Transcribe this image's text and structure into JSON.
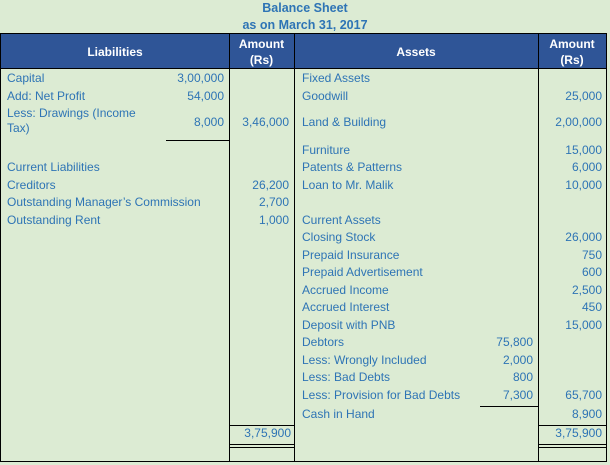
{
  "title": "Balance Sheet",
  "subtitle": "as on March 31, 2017",
  "header": {
    "liabilities": "Liabilities",
    "amount_left": "Amount (Rs)",
    "assets": "Assets",
    "amount_right": "Amount (Rs)"
  },
  "liabilities": [
    {
      "label": "Capital",
      "sub": "3,00,000",
      "amount": ""
    },
    {
      "label": "Add: Net Profit",
      "sub": "54,000",
      "amount": ""
    },
    {
      "label": "Less: Drawings (Income",
      "label2": "Tax)",
      "sub": "8,000",
      "amount": "3,46,000"
    },
    {
      "label": "Current Liabilities",
      "sub": "",
      "amount": ""
    },
    {
      "label": "Creditors",
      "sub": "",
      "amount": "26,200"
    },
    {
      "label": "Outstanding Manager’s Commission",
      "sub": "",
      "amount": "2,700"
    },
    {
      "label": "Outstanding Rent",
      "sub": "",
      "amount": "1,000"
    }
  ],
  "assets": [
    {
      "label": "Fixed Assets",
      "sub": "",
      "amount": ""
    },
    {
      "label": "Goodwill",
      "sub": "",
      "amount": "25,000"
    },
    {
      "label": "Land & Building",
      "sub": "",
      "amount": "2,00,000"
    },
    {
      "label": "Furniture",
      "sub": "",
      "amount": "15,000"
    },
    {
      "label": "Patents & Patterns",
      "sub": "",
      "amount": "6,000"
    },
    {
      "label": "Loan to Mr. Malik",
      "sub": "",
      "amount": "10,000"
    },
    {
      "label": "Current Assets",
      "sub": "",
      "amount": ""
    },
    {
      "label": "Closing Stock",
      "sub": "",
      "amount": "26,000"
    },
    {
      "label": "Prepaid Insurance",
      "sub": "",
      "amount": "750"
    },
    {
      "label": "Prepaid Advertisement",
      "sub": "",
      "amount": "600"
    },
    {
      "label": "Accrued Income",
      "sub": "",
      "amount": "2,500"
    },
    {
      "label": "Accrued Interest",
      "sub": "",
      "amount": "450"
    },
    {
      "label": "Deposit with PNB",
      "sub": "",
      "amount": "15,000"
    },
    {
      "label": "Debtors",
      "sub": "75,800",
      "amount": ""
    },
    {
      "label": "Less: Wrongly Included",
      "sub": "2,000",
      "amount": ""
    },
    {
      "label": "Less: Bad Debts",
      "sub": "800",
      "amount": ""
    },
    {
      "label": "Less: Provision for Bad Debts",
      "sub": "7,300",
      "amount": "65,700"
    },
    {
      "label": "Cash in Hand",
      "sub": "",
      "amount": "8,900"
    }
  ],
  "totals": {
    "liabilities": "3,75,900",
    "assets": "3,75,900"
  },
  "colors": {
    "background": "#DCEBD3",
    "header": "#2F5597",
    "text": "#2E74B5"
  }
}
